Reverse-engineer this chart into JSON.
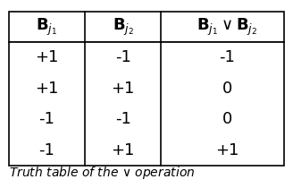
{
  "col_headers": [
    "$\\mathbf{B}_{j_1}$",
    "$\\mathbf{B}_{j_2}$",
    "$\\mathbf{B}_{j_1} \\vee \\mathbf{B}_{j_2}$"
  ],
  "rows": [
    [
      "+1",
      "-1",
      "-1"
    ],
    [
      "+1",
      "+1",
      "0"
    ],
    [
      "-1",
      "-1",
      "0"
    ],
    [
      "-1",
      "+1",
      "+1"
    ]
  ],
  "caption": "Truth table of the $\\vee$ operation",
  "bg_color": "#ffffff",
  "line_color": "#000000",
  "text_color": "#000000",
  "header_fontsize": 13,
  "cell_fontsize": 13,
  "caption_fontsize": 10
}
